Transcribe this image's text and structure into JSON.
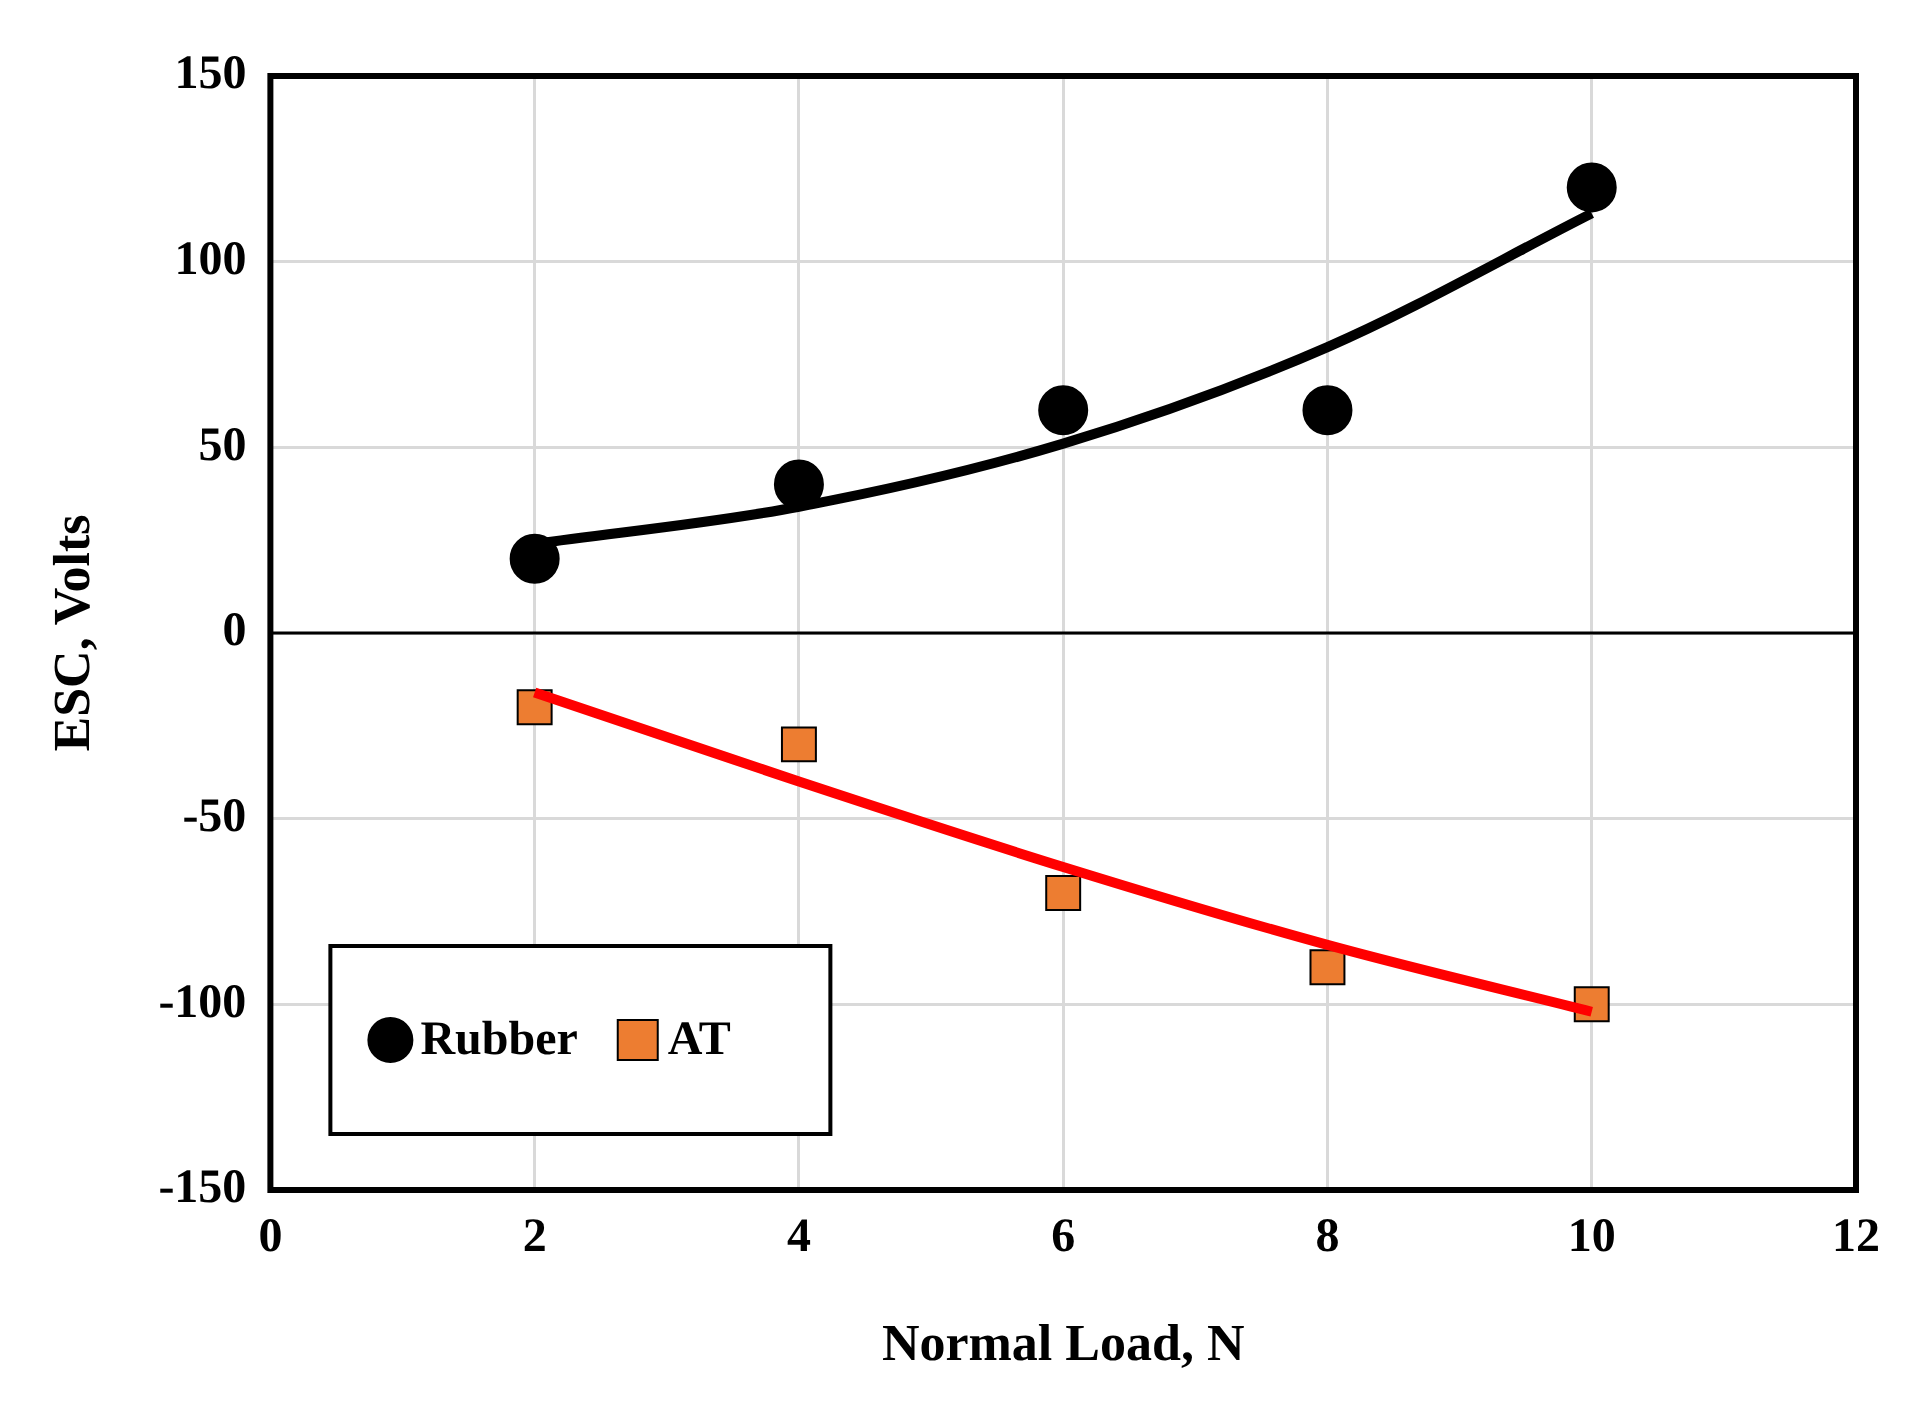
{
  "chart_data": {
    "type": "scatter",
    "xlabel": "Normal Load, N",
    "ylabel": "ESC, Volts",
    "xlim": [
      0,
      12
    ],
    "xticks": [
      0,
      2,
      4,
      6,
      8,
      10,
      12
    ],
    "ylim": [
      -150,
      150
    ],
    "yticks": [
      -150,
      -100,
      -50,
      0,
      50,
      100,
      150
    ],
    "grid": true,
    "legend": "bottom left",
    "ref_lines": [
      {
        "axis": "y",
        "value": 0,
        "color": "#000000"
      }
    ],
    "series": [
      {
        "name": "Rubber",
        "marker": "circle",
        "color": "#000000",
        "x": [
          2,
          4,
          6,
          8,
          10
        ],
        "values": [
          20,
          40,
          60,
          60,
          120
        ]
      },
      {
        "name": "AT",
        "marker": "square",
        "color": "#ed7d31",
        "x": [
          2,
          4,
          6,
          8,
          10
        ],
        "values": [
          -20,
          -30,
          -70,
          -90,
          -100
        ]
      },
      {
        "type": "line",
        "marker": "none",
        "color": "#000000",
        "x": [
          2,
          4,
          6,
          8,
          10
        ],
        "values": [
          24,
          34,
          51,
          77,
          113
        ]
      },
      {
        "type": "line",
        "marker": "none",
        "color": "#ff0000",
        "x": [
          2,
          4,
          6,
          8,
          10
        ],
        "values": [
          -16,
          -40,
          -63,
          -84,
          -102
        ]
      }
    ]
  }
}
